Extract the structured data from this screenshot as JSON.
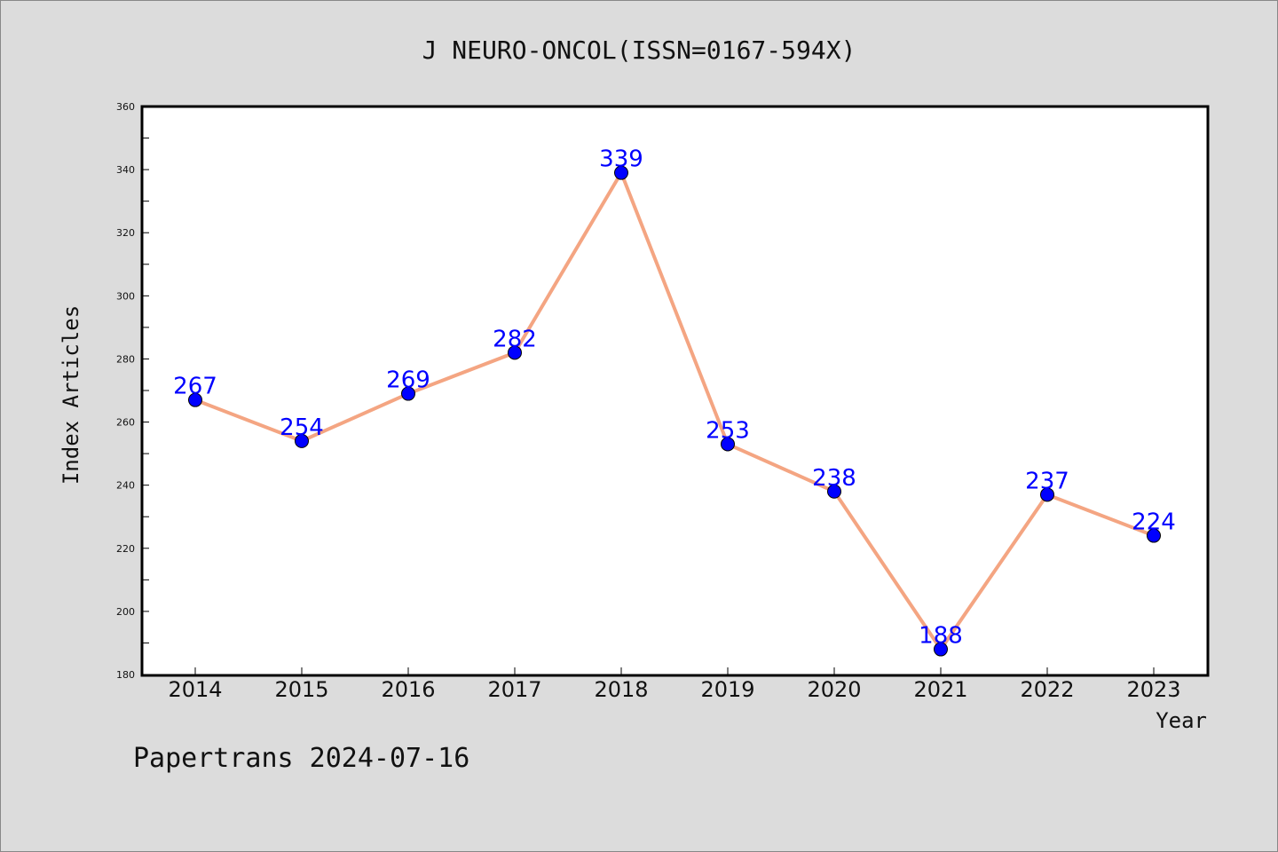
{
  "chart_data": {
    "type": "line",
    "title": "J NEURO-ONCOL(ISSN=0167-594X)",
    "xlabel": "Year",
    "ylabel": "Index Articles",
    "categories": [
      "2014",
      "2015",
      "2016",
      "2017",
      "2018",
      "2019",
      "2020",
      "2021",
      "2022",
      "2023"
    ],
    "series": [
      {
        "values": [
          267,
          254,
          269,
          282,
          339,
          253,
          238,
          188,
          237,
          224
        ]
      }
    ],
    "data_labels": [
      "267",
      "254",
      "269",
      "282",
      "339",
      "253",
      "238",
      "188",
      "237",
      "224"
    ],
    "ylim": [
      180,
      360
    ],
    "yticks": [
      180,
      200,
      220,
      240,
      260,
      280,
      300,
      320,
      340,
      360
    ],
    "grid": false,
    "line_color": "#f4a582",
    "marker_color": "#0000ff",
    "label_color": "#0000ff"
  },
  "footer": {
    "text": "Papertrans 2024-07-16"
  }
}
